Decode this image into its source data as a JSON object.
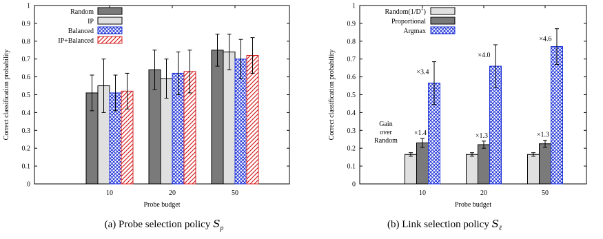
{
  "chart_data": [
    {
      "type": "bar",
      "caption": "(a) Probe selection policy",
      "caption_symbol": "S",
      "caption_sub": "p",
      "xlabel": "Probe budget",
      "ylabel": "Correct classification probability",
      "ylim": [
        0,
        1
      ],
      "yticks": [
        "0",
        "0.1",
        "0.2",
        "0.3",
        "0.4",
        "0.5",
        "0.6",
        "0.7",
        "0.8",
        "0.9",
        "1"
      ],
      "categories": [
        "10",
        "20",
        "50"
      ],
      "legend_position": "top-left",
      "series": [
        {
          "name": "Random",
          "values": [
            0.51,
            0.64,
            0.75
          ],
          "err": [
            0.1,
            0.11,
            0.09
          ],
          "fill": "#7a7a7a",
          "pattern": "solid"
        },
        {
          "name": "IP",
          "values": [
            0.55,
            0.59,
            0.74
          ],
          "err": [
            0.15,
            0.11,
            0.1
          ],
          "fill": "#e0e0e0",
          "pattern": "solid"
        },
        {
          "name": "Balanced",
          "values": [
            0.51,
            0.62,
            0.7
          ],
          "err": [
            0.1,
            0.12,
            0.11
          ],
          "fill": "#1a2fd6",
          "pattern": "crosshatch"
        },
        {
          "name": "IP+Balanced",
          "values": [
            0.52,
            0.63,
            0.72
          ],
          "err": [
            0.1,
            0.12,
            0.1
          ],
          "fill": "#d42020",
          "pattern": "diagonal"
        }
      ]
    },
    {
      "type": "bar",
      "caption": "(b) Link selection policy",
      "caption_symbol": "S",
      "caption_sub": "ℓ",
      "xlabel": "Probe budget",
      "ylabel": "Correct classification probability",
      "ylim": [
        0,
        1
      ],
      "yticks": [
        "0",
        "0.1",
        "0.2",
        "0.3",
        "0.4",
        "0.5",
        "0.6",
        "0.7",
        "0.8",
        "0.9",
        "1"
      ],
      "categories": [
        "10",
        "20",
        "50"
      ],
      "legend_position": "top-left",
      "series": [
        {
          "name": "Random(1/D+)",
          "name_main": "Random(1/D",
          "name_sup": "+",
          "name_end": ")",
          "values": [
            0.165,
            0.165,
            0.165
          ],
          "err": [
            0.01,
            0.01,
            0.01
          ],
          "fill": "#e0e0e0",
          "pattern": "solid"
        },
        {
          "name": "Proportional",
          "values": [
            0.23,
            0.22,
            0.225
          ],
          "err": [
            0.025,
            0.02,
            0.02
          ],
          "fill": "#7a7a7a",
          "pattern": "solid"
        },
        {
          "name": "Argmax",
          "values": [
            0.565,
            0.66,
            0.77
          ],
          "err": [
            0.12,
            0.12,
            0.1
          ],
          "fill": "#1a2fd6",
          "pattern": "crosshatch"
        }
      ],
      "annotations": {
        "gain_label": [
          "Gain",
          "over",
          "Random"
        ],
        "proportional_gain": [
          "×1.4",
          "×1.3",
          "×1.3"
        ],
        "argmax_gain": [
          "×3.4",
          "×4.0",
          "×4.6"
        ]
      }
    }
  ]
}
